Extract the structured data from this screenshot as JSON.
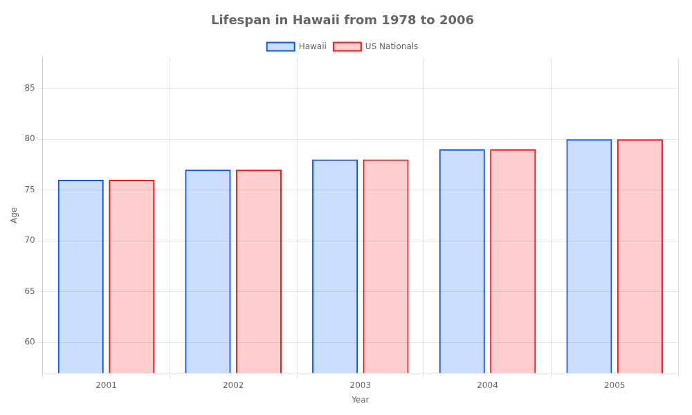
{
  "chart_data": {
    "type": "bar",
    "title": "Lifespan in Hawaii from 1978 to 2006",
    "x_label": "Year",
    "y_label": "Age",
    "categories": [
      "2001",
      "2002",
      "2003",
      "2004",
      "2005"
    ],
    "series": [
      {
        "name": "Hawaii",
        "color": "#0055ff",
        "values": [
          76,
          77,
          78,
          79,
          80
        ]
      },
      {
        "name": "US Nationals",
        "color": "#ff1111",
        "values": [
          76,
          77,
          78,
          79,
          80
        ]
      }
    ],
    "ylim": [
      57,
      88
    ],
    "yticks": [
      60,
      65,
      70,
      75,
      80,
      85
    ],
    "grid": true,
    "legend": "top"
  }
}
